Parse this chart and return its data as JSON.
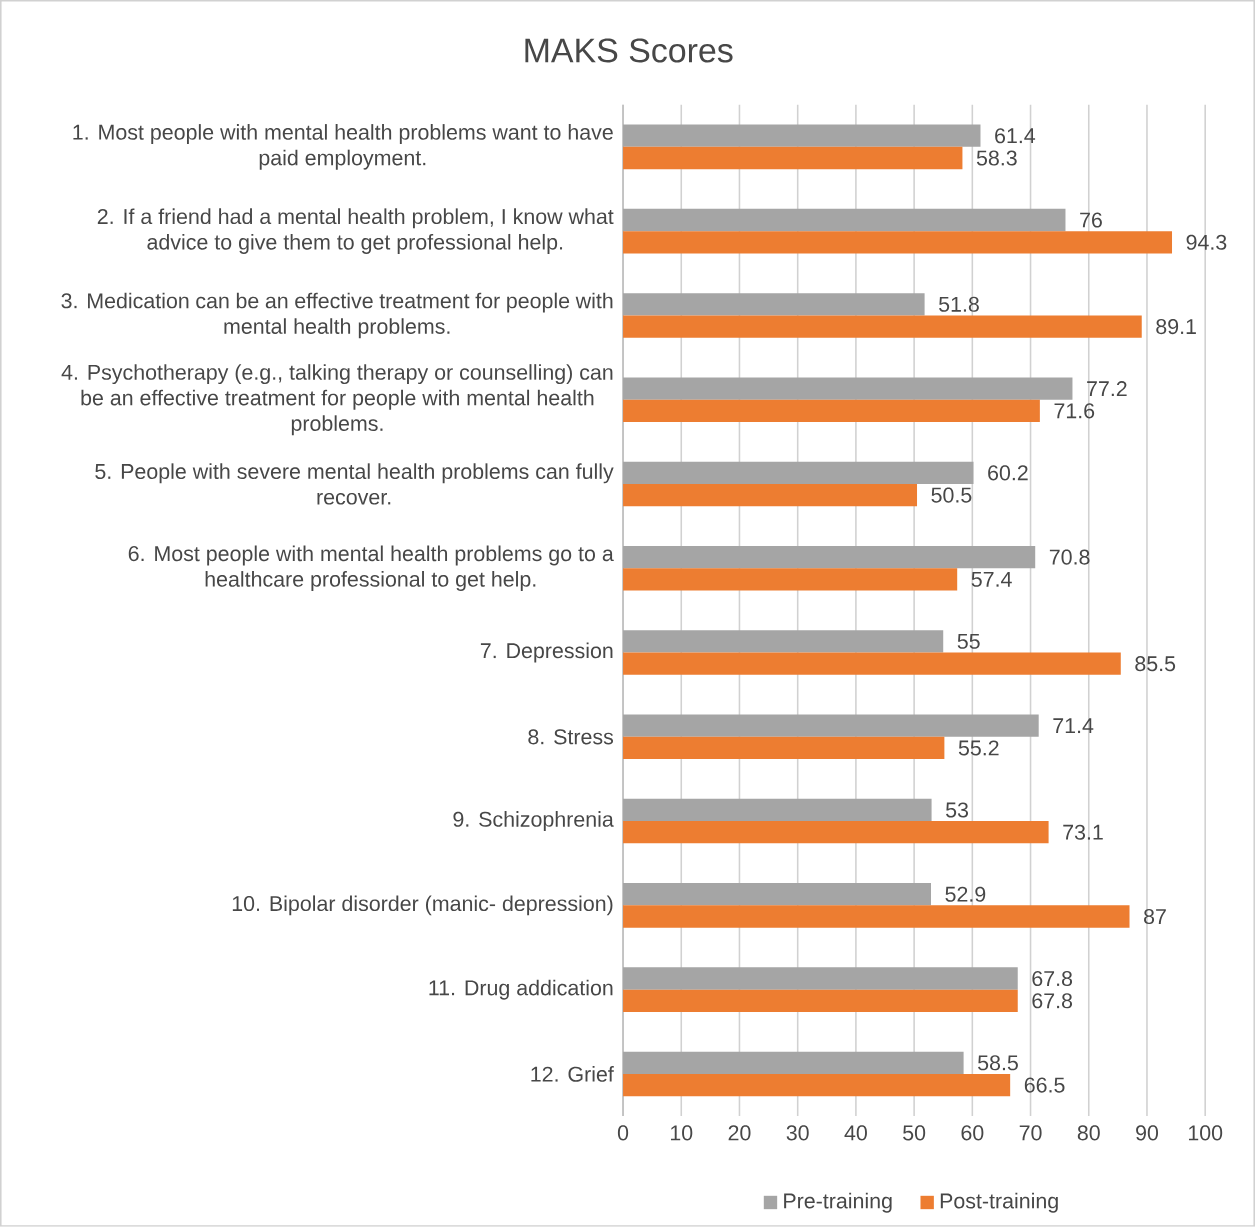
{
  "chart_data": {
    "type": "bar",
    "orientation": "horizontal",
    "title": "MAKS Scores",
    "categories": [
      "1. Most people with mental health problems want to have paid employment.",
      "2. If a friend had a mental health problem, I know what advice to give them to get professional help.",
      "3. Medication can be an effective treatment for people with mental health problems.",
      "4. Psychotherapy (e.g., talking therapy or counselling) can be an effective treatment for people with mental health problems.",
      "5. People with severe mental health problems can fully recover.",
      "6. Most people with mental health problems go to a healthcare professional to get help.",
      "7. Depression",
      "8. Stress",
      "9. Schizophrenia",
      "10. Bipolar disorder (manic- depression)",
      "11. Drug addication",
      "12. Grief"
    ],
    "series": [
      {
        "name": "Pre-training",
        "color": "#a5a5a5",
        "values": [
          61.4,
          76,
          51.8,
          77.2,
          60.2,
          70.8,
          55,
          71.4,
          53,
          52.9,
          67.8,
          58.5
        ]
      },
      {
        "name": "Post-training",
        "color": "#ed7d31",
        "values": [
          58.3,
          94.3,
          89.1,
          71.6,
          50.5,
          57.4,
          85.5,
          55.2,
          73.1,
          87,
          67.8,
          66.5
        ]
      }
    ],
    "xlim": [
      0,
      100
    ],
    "xticks": [
      0,
      10,
      20,
      30,
      40,
      50,
      60,
      70,
      80,
      90,
      100
    ],
    "grid": "x",
    "legend": "bottom",
    "data_labels": true
  }
}
